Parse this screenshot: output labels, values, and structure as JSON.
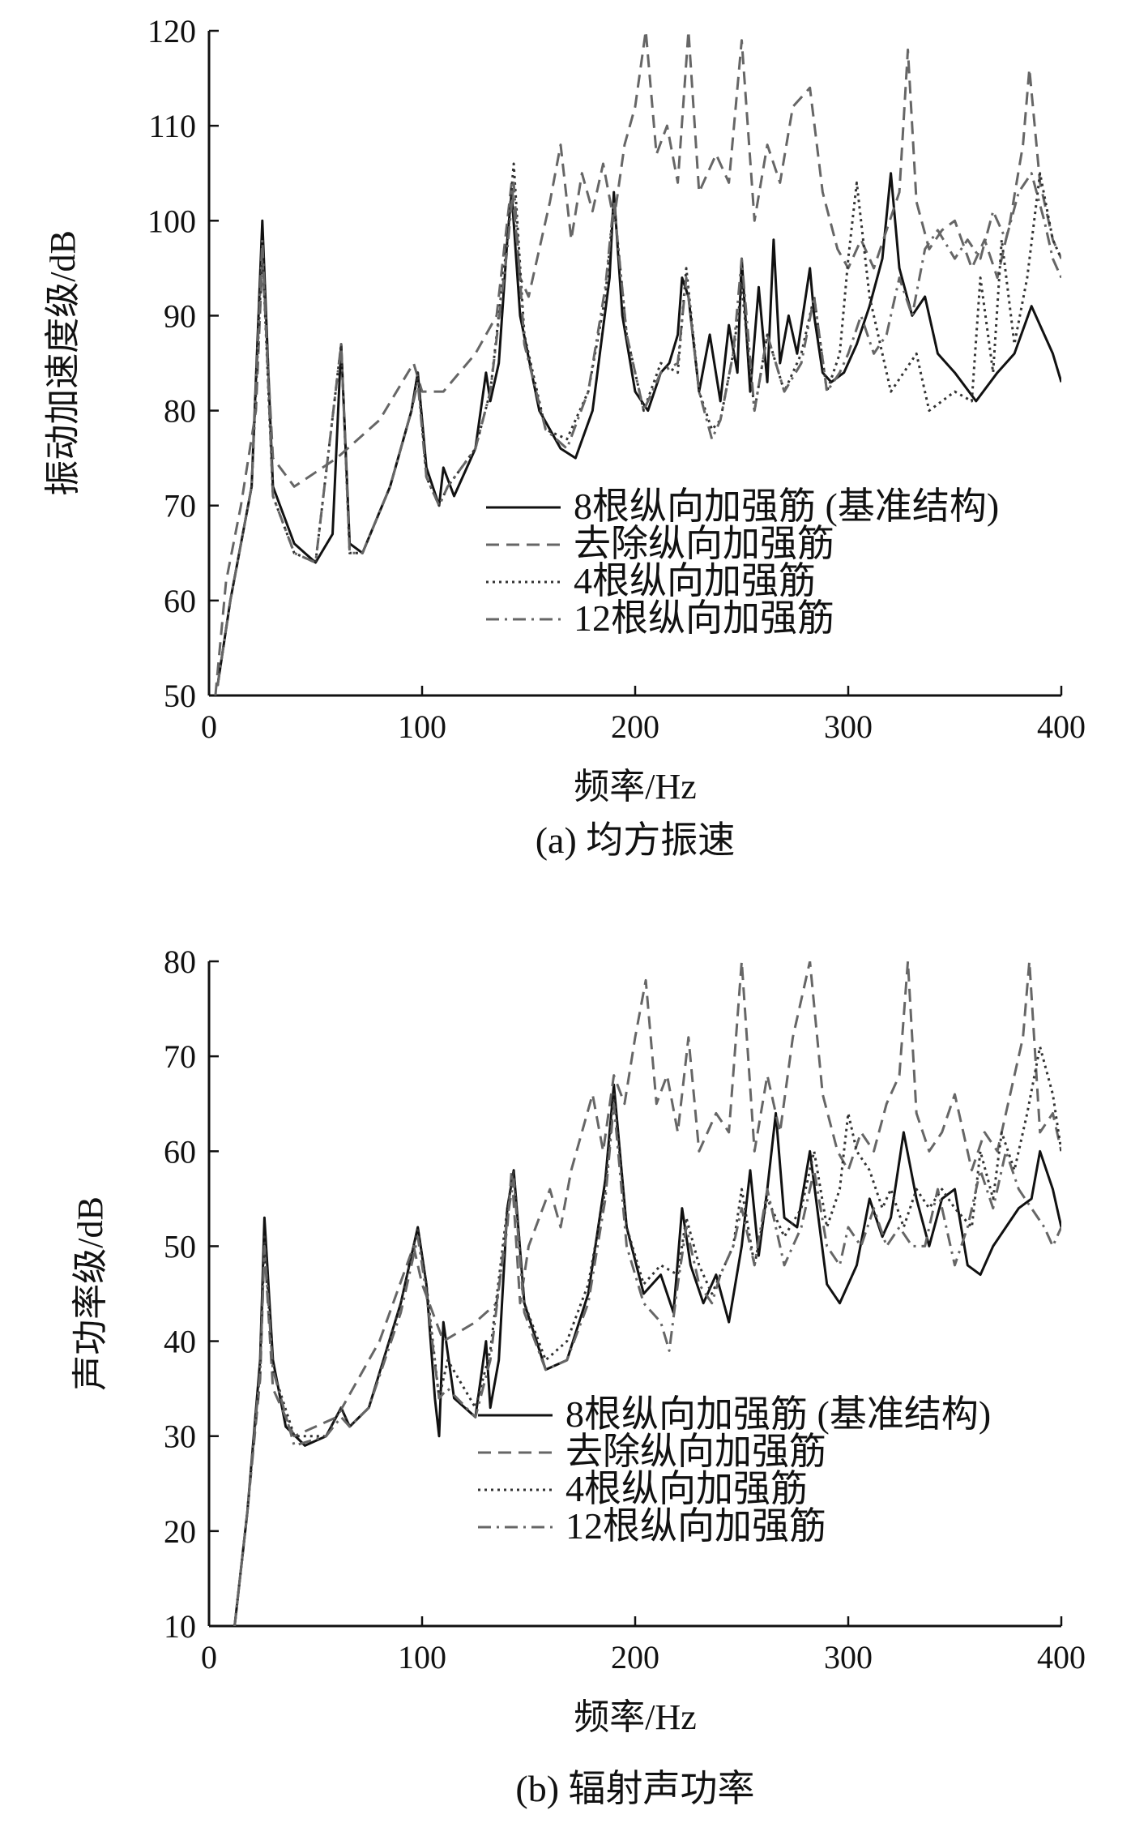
{
  "chart_data": [
    {
      "type": "line",
      "caption": "(a) 均方振速",
      "xlabel": "频率/Hz",
      "ylabel": "振动加速度级/dB",
      "xlim": [
        0,
        400
      ],
      "ylim": [
        50,
        120
      ],
      "xticks": [
        0,
        100,
        200,
        300,
        400
      ],
      "yticks": [
        50,
        60,
        70,
        80,
        90,
        100,
        110,
        120
      ],
      "legend_position": "center-right",
      "series": [
        {
          "name": "8根纵向加强筋 (基准结构)",
          "style": "solid",
          "color": "#111111",
          "x": [
            4,
            10,
            20,
            25,
            30,
            40,
            50,
            58,
            62,
            66,
            72,
            85,
            95,
            98,
            102,
            108,
            110,
            115,
            125,
            130,
            132,
            136,
            140,
            142,
            146,
            155,
            165,
            172,
            180,
            188,
            190,
            194,
            200,
            206,
            212,
            216,
            220,
            222,
            225,
            230,
            235,
            240,
            244,
            248,
            250,
            254,
            258,
            262,
            265,
            268,
            272,
            276,
            282,
            284,
            288,
            292,
            298,
            304,
            310,
            316,
            320,
            324,
            330,
            336,
            342,
            350,
            360,
            370,
            378,
            386,
            390,
            396,
            400
          ],
          "values": [
            51,
            60,
            72,
            100,
            72,
            66,
            64,
            67,
            87,
            66,
            65,
            72,
            80,
            84,
            74,
            70,
            74,
            71,
            76,
            84,
            81,
            85,
            98,
            103,
            90,
            80,
            76,
            75,
            80,
            94,
            103,
            90,
            82,
            80,
            84,
            85,
            88,
            94,
            92,
            82,
            88,
            81,
            89,
            84,
            96,
            82,
            93,
            83,
            98,
            85,
            90,
            86,
            95,
            90,
            84,
            83,
            84,
            87,
            91,
            96,
            105,
            95,
            90,
            92,
            86,
            84,
            81,
            84,
            86,
            91,
            89,
            86,
            83
          ]
        },
        {
          "name": "去除纵向加强筋",
          "style": "dashed",
          "color": "#666666",
          "x": [
            3,
            8,
            15,
            22,
            25,
            30,
            40,
            60,
            80,
            96,
            100,
            110,
            125,
            135,
            140,
            142,
            146,
            150,
            160,
            165,
            170,
            175,
            180,
            185,
            190,
            195,
            200,
            205,
            210,
            215,
            220,
            225,
            230,
            238,
            244,
            250,
            256,
            262,
            268,
            274,
            282,
            288,
            295,
            300,
            306,
            312,
            318,
            324,
            328,
            332,
            338,
            344,
            350,
            358,
            364,
            370,
            376,
            382,
            385,
            390,
            396,
            400
          ],
          "values": [
            50,
            62,
            70,
            80,
            96,
            75,
            72,
            75,
            79,
            85,
            82,
            82,
            86,
            90,
            100,
            104,
            94,
            92,
            102,
            108,
            98,
            105,
            101,
            106,
            100,
            108,
            112,
            120,
            107,
            110,
            104,
            120,
            103,
            107,
            104,
            119,
            100,
            108,
            104,
            112,
            114,
            103,
            97,
            95,
            98,
            95,
            99,
            103,
            118,
            102,
            97,
            99,
            100,
            95,
            98,
            94,
            100,
            108,
            116,
            104,
            98,
            96
          ]
        },
        {
          "name": "4根纵向加强筋",
          "style": "dotted",
          "color": "#333333",
          "x": [
            4,
            10,
            20,
            25,
            30,
            40,
            50,
            62,
            66,
            72,
            85,
            95,
            98,
            102,
            108,
            112,
            125,
            132,
            140,
            143,
            148,
            158,
            168,
            178,
            186,
            190,
            196,
            204,
            212,
            220,
            224,
            230,
            236,
            240,
            246,
            250,
            256,
            262,
            270,
            278,
            284,
            290,
            296,
            300,
            304,
            310,
            316,
            320,
            326,
            332,
            338,
            344,
            350,
            358,
            362,
            368,
            372,
            378,
            384,
            390,
            396,
            400
          ],
          "values": [
            51,
            60,
            72,
            97,
            71,
            65,
            64,
            87,
            65,
            65,
            72,
            80,
            84,
            73,
            70,
            72,
            76,
            82,
            98,
            106,
            88,
            78,
            77,
            82,
            92,
            102,
            88,
            80,
            85,
            84,
            95,
            82,
            78,
            79,
            86,
            93,
            80,
            88,
            82,
            86,
            92,
            82,
            86,
            96,
            104,
            92,
            86,
            82,
            84,
            86,
            80,
            81,
            82,
            81,
            94,
            84,
            98,
            87,
            94,
            105,
            98,
            96
          ]
        },
        {
          "name": "12根纵向加强筋",
          "style": "dashdot",
          "color": "#666666",
          "x": [
            4,
            10,
            20,
            25,
            30,
            40,
            50,
            62,
            66,
            72,
            85,
            95,
            98,
            102,
            108,
            112,
            125,
            132,
            140,
            143,
            148,
            158,
            168,
            178,
            186,
            190,
            196,
            204,
            212,
            220,
            224,
            230,
            236,
            240,
            246,
            250,
            256,
            262,
            270,
            278,
            284,
            290,
            296,
            300,
            306,
            312,
            318,
            324,
            330,
            336,
            342,
            350,
            356,
            362,
            368,
            374,
            380,
            386,
            392,
            396,
            400
          ],
          "values": [
            51,
            60,
            72,
            98,
            71,
            65,
            64,
            87,
            65,
            65,
            72,
            80,
            83,
            73,
            70,
            72,
            76,
            82,
            97,
            104,
            87,
            78,
            76,
            82,
            93,
            102,
            88,
            80,
            84,
            85,
            94,
            82,
            77,
            79,
            86,
            96,
            80,
            88,
            82,
            85,
            92,
            82,
            84,
            86,
            90,
            86,
            88,
            94,
            90,
            97,
            99,
            96,
            98,
            96,
            101,
            98,
            103,
            105,
            100,
            96,
            94
          ]
        }
      ]
    },
    {
      "type": "line",
      "caption": "(b) 辐射声功率",
      "xlabel": "频率/Hz",
      "ylabel": "声功率级/dB",
      "xlim": [
        0,
        400
      ],
      "ylim": [
        10,
        80
      ],
      "xticks": [
        0,
        100,
        200,
        300,
        400
      ],
      "yticks": [
        10,
        20,
        30,
        40,
        50,
        60,
        70,
        80
      ],
      "legend_position": "center-right",
      "series": [
        {
          "name": "8根纵向加强筋 (基准结构)",
          "style": "solid",
          "color": "#111111",
          "x": [
            12,
            18,
            24,
            26,
            30,
            36,
            45,
            55,
            62,
            66,
            75,
            90,
            98,
            102,
            106,
            108,
            110,
            115,
            125,
            130,
            132,
            136,
            140,
            143,
            148,
            158,
            168,
            178,
            186,
            190,
            196,
            204,
            212,
            218,
            222,
            226,
            232,
            238,
            244,
            250,
            254,
            258,
            262,
            266,
            270,
            276,
            282,
            286,
            290,
            296,
            304,
            310,
            316,
            320,
            326,
            332,
            338,
            344,
            350,
            356,
            362,
            368,
            374,
            380,
            386,
            390,
            396,
            400
          ],
          "values": [
            10,
            22,
            38,
            53,
            38,
            31,
            29,
            30,
            33,
            31,
            33,
            44,
            52,
            46,
            34,
            30,
            42,
            34,
            32,
            40,
            33,
            38,
            54,
            58,
            44,
            37,
            38,
            45,
            57,
            67,
            52,
            45,
            47,
            43,
            54,
            48,
            44,
            47,
            42,
            50,
            58,
            49,
            56,
            64,
            53,
            52,
            60,
            53,
            46,
            44,
            48,
            55,
            51,
            53,
            62,
            55,
            50,
            55,
            56,
            48,
            47,
            50,
            52,
            54,
            55,
            60,
            56,
            52
          ]
        },
        {
          "name": "去除纵向加强筋",
          "style": "dashed",
          "color": "#666666",
          "x": [
            12,
            18,
            24,
            26,
            30,
            40,
            60,
            80,
            96,
            100,
            110,
            125,
            135,
            140,
            142,
            146,
            150,
            160,
            165,
            170,
            180,
            185,
            190,
            195,
            200,
            205,
            210,
            215,
            220,
            225,
            230,
            238,
            244,
            250,
            256,
            262,
            268,
            274,
            282,
            288,
            295,
            300,
            306,
            312,
            318,
            324,
            328,
            332,
            338,
            344,
            350,
            358,
            364,
            370,
            376,
            382,
            385,
            390,
            396,
            400
          ],
          "values": [
            10,
            22,
            36,
            50,
            35,
            30,
            32,
            40,
            50,
            46,
            40,
            42,
            44,
            52,
            58,
            44,
            50,
            56,
            52,
            58,
            66,
            60,
            68,
            65,
            72,
            78,
            65,
            68,
            62,
            72,
            60,
            64,
            62,
            80,
            60,
            68,
            62,
            72,
            80,
            66,
            60,
            58,
            62,
            60,
            65,
            68,
            80,
            64,
            60,
            62,
            66,
            58,
            62,
            60,
            66,
            72,
            80,
            62,
            64,
            60
          ]
        },
        {
          "name": "4根纵向加强筋",
          "style": "dotted",
          "color": "#333333",
          "x": [
            12,
            18,
            24,
            26,
            30,
            40,
            55,
            62,
            66,
            75,
            90,
            98,
            102,
            108,
            112,
            125,
            132,
            140,
            143,
            148,
            158,
            168,
            178,
            186,
            190,
            196,
            204,
            212,
            220,
            224,
            230,
            236,
            240,
            246,
            250,
            256,
            262,
            270,
            278,
            284,
            290,
            296,
            300,
            304,
            310,
            316,
            320,
            326,
            332,
            338,
            344,
            350,
            358,
            362,
            368,
            372,
            378,
            384,
            390,
            396,
            400
          ],
          "values": [
            10,
            22,
            37,
            51,
            37,
            30,
            30,
            33,
            31,
            33,
            44,
            52,
            46,
            34,
            38,
            33,
            39,
            54,
            58,
            44,
            38,
            40,
            46,
            56,
            66,
            52,
            46,
            48,
            47,
            53,
            48,
            45,
            47,
            50,
            56,
            48,
            55,
            51,
            54,
            60,
            52,
            56,
            64,
            60,
            58,
            54,
            56,
            52,
            56,
            54,
            56,
            54,
            52,
            60,
            55,
            62,
            58,
            64,
            71,
            66,
            60
          ]
        },
        {
          "name": "12根纵向加强筋",
          "style": "dashdot",
          "color": "#666666",
          "x": [
            12,
            18,
            24,
            26,
            30,
            40,
            55,
            62,
            66,
            75,
            90,
            98,
            102,
            108,
            112,
            125,
            132,
            140,
            143,
            148,
            158,
            168,
            178,
            186,
            190,
            196,
            204,
            212,
            216,
            220,
            224,
            230,
            236,
            240,
            246,
            250,
            256,
            262,
            270,
            278,
            284,
            290,
            296,
            300,
            306,
            312,
            318,
            324,
            330,
            336,
            342,
            350,
            356,
            362,
            368,
            374,
            380,
            386,
            392,
            396,
            400
          ],
          "values": [
            10,
            22,
            37,
            50,
            37,
            29,
            30,
            32,
            31,
            33,
            43,
            51,
            45,
            34,
            35,
            32,
            38,
            53,
            57,
            43,
            37,
            38,
            44,
            55,
            65,
            50,
            44,
            42,
            39,
            46,
            52,
            46,
            44,
            47,
            50,
            54,
            48,
            56,
            48,
            52,
            58,
            50,
            48,
            52,
            50,
            54,
            50,
            52,
            50,
            50,
            56,
            48,
            52,
            58,
            54,
            60,
            56,
            54,
            52,
            50,
            52
          ]
        }
      ]
    }
  ]
}
